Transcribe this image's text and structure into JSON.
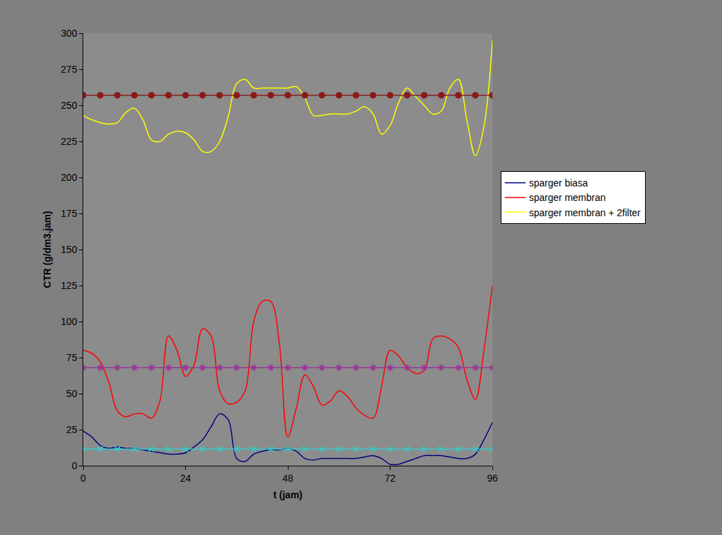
{
  "chart_data": {
    "type": "line",
    "x_label": "t (jam)",
    "y_label": "CTR (g/dm3.jam)",
    "xlim": [
      0,
      96
    ],
    "xticks": [
      0,
      24,
      48,
      72,
      96
    ],
    "ylim": [
      0,
      300
    ],
    "yticks": [
      0,
      25,
      50,
      75,
      100,
      125,
      150,
      175,
      200,
      225,
      250,
      275,
      300
    ],
    "grid": false,
    "legend": "right",
    "x": [
      0,
      2,
      4,
      6,
      8,
      10,
      12,
      14,
      16,
      18,
      20,
      22,
      24,
      26,
      28,
      30,
      32,
      34,
      36,
      38,
      40,
      42,
      44,
      46,
      48,
      50,
      52,
      54,
      56,
      58,
      60,
      62,
      64,
      66,
      68,
      70,
      72,
      74,
      76,
      78,
      80,
      82,
      84,
      86,
      88,
      90,
      92,
      94,
      96
    ],
    "series": [
      {
        "name": "sparger biasa",
        "color": "#000080",
        "line_style": "smooth",
        "values": [
          24,
          20,
          14,
          12,
          13,
          12,
          12,
          11,
          10,
          9,
          8,
          8,
          9,
          13,
          18,
          27,
          36,
          32,
          5,
          3,
          8,
          10,
          11,
          11,
          12,
          10,
          5,
          4,
          5,
          5,
          5,
          5,
          5,
          6,
          7,
          5,
          1,
          1,
          3,
          5,
          7,
          7,
          7,
          6,
          5,
          5,
          8,
          18,
          30
        ]
      },
      {
        "name": "sparger membran",
        "color": "#ff0000",
        "line_style": "smooth",
        "values": [
          80,
          78,
          72,
          58,
          38,
          34,
          36,
          36,
          33,
          45,
          90,
          80,
          62,
          70,
          95,
          90,
          52,
          43,
          44,
          52,
          100,
          114,
          114,
          85,
          20,
          40,
          63,
          55,
          42,
          45,
          52,
          48,
          40,
          35,
          33,
          55,
          80,
          76,
          68,
          64,
          66,
          88,
          90,
          88,
          82,
          60,
          46,
          80,
          125
        ]
      },
      {
        "name": "sparger membran + 2filter",
        "color": "#ffff00",
        "line_style": "smooth",
        "values": [
          243,
          240,
          238,
          237,
          238,
          245,
          248,
          240,
          226,
          225,
          230,
          232,
          231,
          226,
          218,
          218,
          225,
          242,
          265,
          268,
          262,
          262,
          262,
          262,
          262,
          263,
          255,
          243,
          243,
          244,
          244,
          244,
          246,
          249,
          244,
          230,
          236,
          252,
          262,
          256,
          250,
          244,
          246,
          262,
          268,
          240,
          215,
          235,
          295
        ]
      },
      {
        "color": "#8b1a1a",
        "line_style": "solid",
        "marker": "circle",
        "x": [
          0,
          4,
          8,
          12,
          16,
          20,
          24,
          28,
          32,
          36,
          40,
          44,
          48,
          52,
          56,
          60,
          64,
          68,
          72,
          76,
          80,
          84,
          88,
          92,
          96
        ],
        "values": [
          257,
          257,
          257,
          257,
          257,
          257,
          257,
          257,
          257,
          257,
          257,
          257,
          257,
          257,
          257,
          257,
          257,
          257,
          257,
          257,
          257,
          257,
          257,
          257,
          257
        ]
      },
      {
        "color": "#993399",
        "line_style": "solid",
        "marker": "asterisk",
        "x": [
          0,
          4,
          8,
          12,
          16,
          20,
          24,
          28,
          32,
          36,
          40,
          44,
          48,
          52,
          56,
          60,
          64,
          68,
          72,
          76,
          80,
          84,
          88,
          92,
          96
        ],
        "values": [
          68,
          68,
          68,
          68,
          68,
          68,
          68,
          68,
          68,
          68,
          68,
          68,
          68,
          68,
          68,
          68,
          68,
          68,
          68,
          68,
          68,
          68,
          68,
          68,
          68
        ]
      },
      {
        "color": "#33cccc",
        "line_style": "solid",
        "marker": "x",
        "x": [
          0,
          4,
          8,
          12,
          16,
          20,
          24,
          28,
          32,
          36,
          40,
          44,
          48,
          52,
          56,
          60,
          64,
          68,
          72,
          76,
          80,
          84,
          88,
          92,
          96
        ],
        "values": [
          11.5,
          11.5,
          11.5,
          11.5,
          11.5,
          11.5,
          11.5,
          11.5,
          11.5,
          11.5,
          11.5,
          11.5,
          11.5,
          11.5,
          11.5,
          11.5,
          11.5,
          11.5,
          11.5,
          11.5,
          11.5,
          11.5,
          11.5,
          11.5,
          11.5
        ]
      }
    ]
  }
}
